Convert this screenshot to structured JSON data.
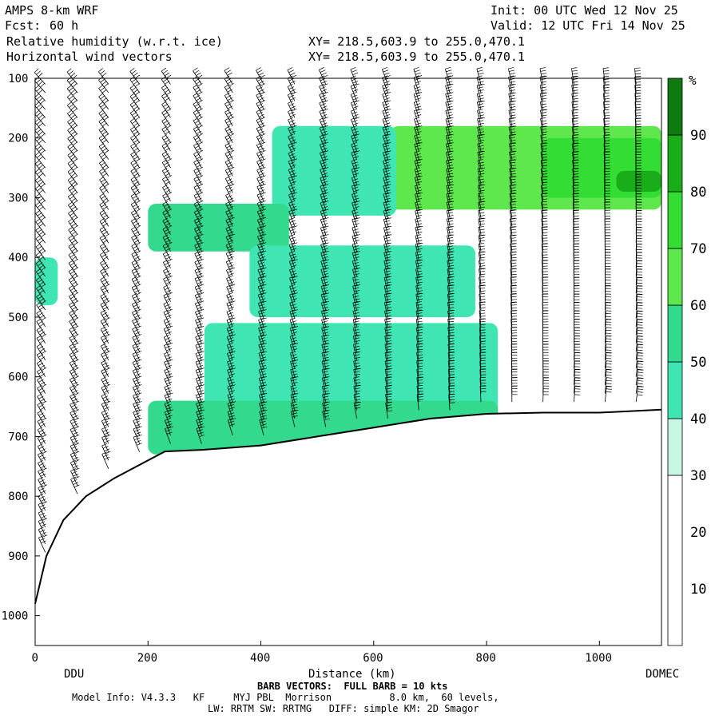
{
  "header": {
    "model": "AMPS 8-km WRF",
    "fcst_label": "Fcst:",
    "fcst_value": "60 h",
    "field1": "Relative humidity (w.r.t. ice)",
    "field2": "Horizontal wind vectors",
    "init": "Init: 00 UTC Wed 12 Nov 25",
    "valid": "Valid: 12 UTC Fri 14 Nov 25",
    "xy1": "XY= 218.5,603.9 to 255.0,470.1",
    "xy2": "XY= 218.5,603.9 to 255.0,470.1"
  },
  "footer": {
    "barb_note": "BARB VECTORS:  FULL BARB = 10 kts",
    "model_info": "Model Info: V4.3.3   KF     MYJ PBL  Morrison          8.0 km,  60 levels,",
    "physics": "LW: RRTM SW: RRTMG   DIFF: simple KM: 2D Smagor"
  },
  "colors": {
    "rh_30_40": "#c8f7e6",
    "rh_40_50": "#3fe6b4",
    "rh_50_60": "#33d98c",
    "rh_60_70": "#5ee84e",
    "rh_70_80": "#33dd33",
    "rh_80_90": "#1aad1a",
    "rh_90_100": "#0f7a0f"
  },
  "chart_data": {
    "type": "heatmap",
    "title": "Relative humidity (w.r.t. ice)",
    "xlabel": "Distance (km)",
    "ylabel": "",
    "xlim": [
      0,
      1110
    ],
    "ylim": [
      1050,
      100
    ],
    "x_ticks": [
      0,
      200,
      400,
      600,
      800,
      1000
    ],
    "y_ticks": [
      100,
      200,
      300,
      400,
      500,
      600,
      700,
      800,
      900,
      1000
    ],
    "endpoint_labels": {
      "left": "DDU",
      "right": "DOMEC"
    },
    "colorbar": {
      "unit": "%",
      "tick_labels": [
        10,
        20,
        30,
        40,
        50,
        60,
        70,
        80,
        90
      ],
      "bins": [
        {
          "range": [
            0,
            30
          ],
          "color": "#ffffff"
        },
        {
          "range": [
            30,
            40
          ],
          "color": "#c8f7e6"
        },
        {
          "range": [
            40,
            50
          ],
          "color": "#3fe6b4"
        },
        {
          "range": [
            50,
            60
          ],
          "color": "#33d98c"
        },
        {
          "range": [
            60,
            70
          ],
          "color": "#5ee84e"
        },
        {
          "range": [
            70,
            80
          ],
          "color": "#33dd33"
        },
        {
          "range": [
            80,
            90
          ],
          "color": "#1aad1a"
        },
        {
          "range": [
            90,
            100
          ],
          "color": "#0f7a0f"
        }
      ]
    },
    "terrain_pressure": {
      "x": [
        0,
        20,
        50,
        90,
        140,
        200,
        230,
        300,
        400,
        500,
        600,
        700,
        800,
        900,
        1000,
        1110
      ],
      "p": [
        980,
        900,
        840,
        800,
        770,
        740,
        725,
        722,
        715,
        700,
        685,
        670,
        662,
        660,
        660,
        655
      ]
    },
    "moist_regions": [
      {
        "x": [
          630,
          1110
        ],
        "p": [
          180,
          320
        ],
        "rh_bin": 60
      },
      {
        "x": [
          900,
          1110
        ],
        "p": [
          200,
          300
        ],
        "rh_bin": 70
      },
      {
        "x": [
          420,
          640
        ],
        "p": [
          180,
          330
        ],
        "rh_bin": 40
      },
      {
        "x": [
          200,
          450
        ],
        "p": [
          310,
          390
        ],
        "rh_bin": 50
      },
      {
        "x": [
          380,
          780
        ],
        "p": [
          380,
          500
        ],
        "rh_bin": 40
      },
      {
        "x": [
          300,
          820
        ],
        "p": [
          510,
          690
        ],
        "rh_bin": 40
      },
      {
        "x": [
          200,
          820
        ],
        "p": [
          640,
          730
        ],
        "rh_bin": 50
      },
      {
        "x": [
          0,
          40
        ],
        "p": [
          400,
          480
        ],
        "rh_bin": 40
      },
      {
        "x": [
          1030,
          1110
        ],
        "p": [
          255,
          290
        ],
        "rh_bin": 80
      }
    ],
    "wind_barbs": {
      "full_barb_kts": 10,
      "columns_x": [
        18,
        75,
        130,
        185,
        240,
        295,
        350,
        405,
        460,
        515,
        570,
        625,
        680,
        735,
        790,
        845,
        900,
        955,
        1010,
        1065
      ]
    }
  }
}
